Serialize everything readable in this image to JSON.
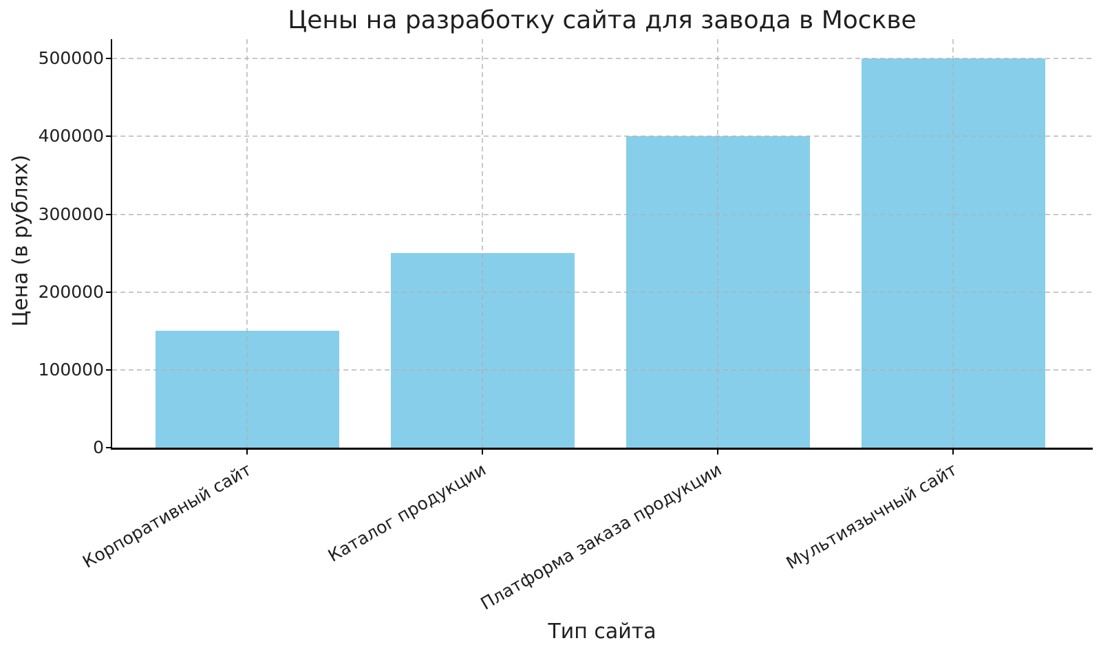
{
  "chart_data": {
    "type": "bar",
    "title": "Цены на разработку сайта для завода в Москве",
    "xlabel": "Тип сайта",
    "ylabel": "Цена (в рублях)",
    "categories": [
      "Корпоративный сайт",
      "Каталог продукции",
      "Платформа заказа продукции",
      "Мультиязычный сайт"
    ],
    "values": [
      150000,
      250000,
      400000,
      500000
    ],
    "yticks": [
      0,
      100000,
      200000,
      300000,
      400000,
      500000
    ],
    "ylim": [
      0,
      525000
    ],
    "bar_color": "#87CEEB",
    "grid": "dashed, drawn over bars",
    "grid_color": "#b0b0b0",
    "legend": "none"
  }
}
